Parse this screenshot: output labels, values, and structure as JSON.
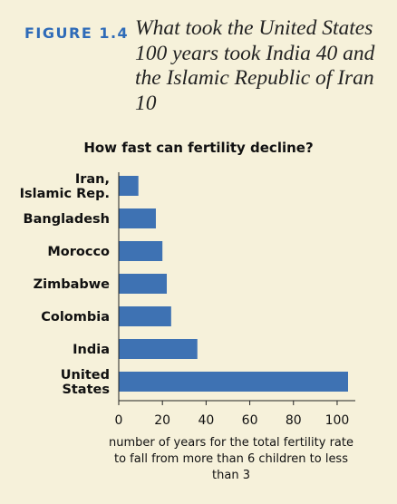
{
  "figure": {
    "label": "FIGURE 1.4",
    "title": "What took the United States 100 years took India 40 and the Islamic Republic of Iran 10"
  },
  "chart_data": {
    "type": "bar",
    "orientation": "horizontal",
    "title": "How fast can fertility decline?",
    "categories": [
      [
        "Iran,",
        "Islamic Rep."
      ],
      [
        "Bangladesh"
      ],
      [
        "Morocco"
      ],
      [
        "Zimbabwe"
      ],
      [
        "Colombia"
      ],
      [
        "India"
      ],
      [
        "United",
        "States"
      ]
    ],
    "values": [
      9,
      17,
      20,
      22,
      24,
      36,
      105
    ],
    "xlabel": "number of years for the total fertility rate to fall from more than 6 children to less than 3",
    "xlim": [
      0,
      105
    ],
    "xticks": [
      0,
      20,
      40,
      60,
      80,
      100
    ],
    "grid": false,
    "bar_color": "#3e72b3"
  }
}
